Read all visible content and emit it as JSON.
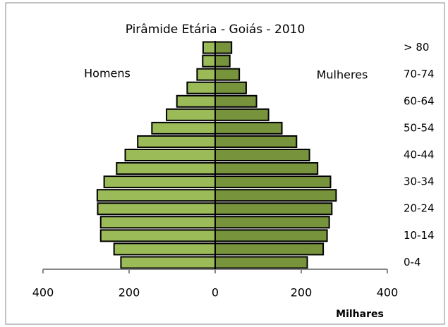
{
  "chart_data": {
    "type": "pyramid",
    "title": "Pirâmide Etária - Goiás - 2010",
    "x_label": "Milhares",
    "categories": [
      "0-4",
      null,
      "10-14",
      null,
      "20-24",
      null,
      "30-34",
      null,
      "40-44",
      null,
      "50-54",
      null,
      "60-64",
      null,
      "70-74",
      null,
      "> 80"
    ],
    "series": [
      {
        "name": "Homens",
        "color": "#9bbb59",
        "values": [
          -219,
          -235,
          -266,
          -266,
          -273,
          -274,
          -258,
          -229,
          -209,
          -180,
          -147,
          -113,
          -89,
          -65,
          -42,
          -29,
          -28
        ]
      },
      {
        "name": "Mulheres",
        "color": "#77933c",
        "values": [
          214,
          251,
          260,
          265,
          271,
          281,
          268,
          238,
          219,
          189,
          155,
          124,
          96,
          72,
          56,
          34,
          38
        ]
      }
    ],
    "xlim": [
      -400,
      400
    ],
    "xticks": [
      {
        "value": -400,
        "label": "400"
      },
      {
        "value": -200,
        "label": "200"
      },
      0,
      200,
      400
    ]
  }
}
